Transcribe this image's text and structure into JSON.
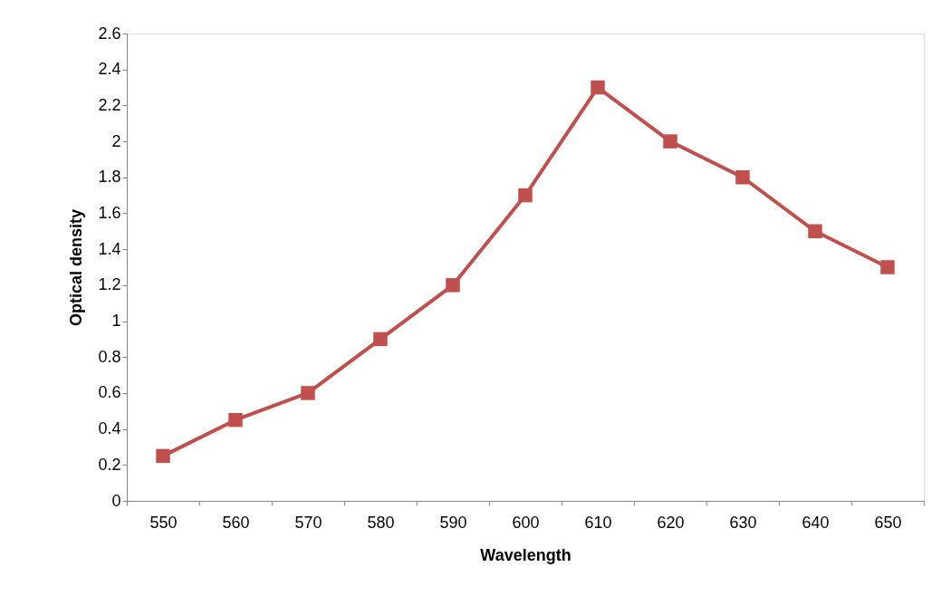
{
  "chart_data": {
    "type": "line",
    "xlabel": "Wavelength",
    "ylabel": "Optical density",
    "categories": [
      "550",
      "560",
      "570",
      "580",
      "590",
      "600",
      "610",
      "620",
      "630",
      "640",
      "650"
    ],
    "series": [
      {
        "color": "#c0504d",
        "values": [
          0.25,
          0.45,
          0.6,
          0.9,
          1.2,
          1.7,
          2.3,
          2.0,
          1.8,
          1.5,
          1.3
        ]
      }
    ],
    "ylim": [
      0,
      2.6
    ],
    "yticks": [
      0,
      0.2,
      0.4,
      0.6,
      0.8,
      1,
      1.2,
      1.4,
      1.6,
      1.8,
      2,
      2.2,
      2.4,
      2.6
    ],
    "grid": false,
    "legend": false,
    "marker": "square",
    "line_style": "solid"
  }
}
